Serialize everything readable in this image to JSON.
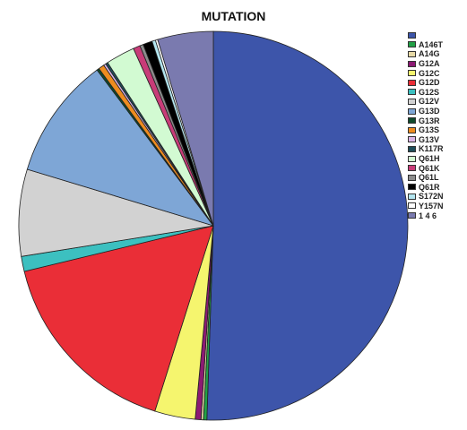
{
  "chart_data": {
    "type": "pie",
    "title": "MUTATION",
    "legend_position": "right",
    "slices": [
      {
        "label": "",
        "value": 52.5,
        "color": "#3d55aa"
      },
      {
        "label": "A146T",
        "value": 0.3,
        "color": "#22a046"
      },
      {
        "label": "A14G",
        "value": 0.2,
        "color": "#e6d9a6"
      },
      {
        "label": "G12A",
        "value": 0.5,
        "color": "#8c1a73"
      },
      {
        "label": "G12C",
        "value": 3.5,
        "color": "#f5f56e"
      },
      {
        "label": "G12D",
        "value": 17.0,
        "color": "#ea2e37"
      },
      {
        "label": "G12S",
        "value": 1.3,
        "color": "#3cc0c0"
      },
      {
        "label": "G12V",
        "value": 7.5,
        "color": "#d2d2d2"
      },
      {
        "label": "G13D",
        "value": 10.5,
        "color": "#7ea6d6"
      },
      {
        "label": "G13R",
        "value": 0.2,
        "color": "#0f4a2c"
      },
      {
        "label": "G13S",
        "value": 0.5,
        "color": "#ee8c1f"
      },
      {
        "label": "G13V",
        "value": 0.2,
        "color": "#dab4e6"
      },
      {
        "label": "K117R",
        "value": 0.2,
        "color": "#1f4e5a"
      },
      {
        "label": "Q61H",
        "value": 2.5,
        "color": "#d2fad2"
      },
      {
        "label": "Q61K",
        "value": 0.6,
        "color": "#c83c78"
      },
      {
        "label": "Q61L",
        "value": 0.3,
        "color": "#8c8c8c"
      },
      {
        "label": "Q61R",
        "value": 0.8,
        "color": "#000000"
      },
      {
        "label": "S172N",
        "value": 0.3,
        "color": "#b4e6f0"
      },
      {
        "label": "Y157N",
        "value": 0.2,
        "color": "#ffffff"
      },
      {
        "label": "1 4 6",
        "value": 4.8,
        "color": "#7a7aaf"
      }
    ]
  }
}
